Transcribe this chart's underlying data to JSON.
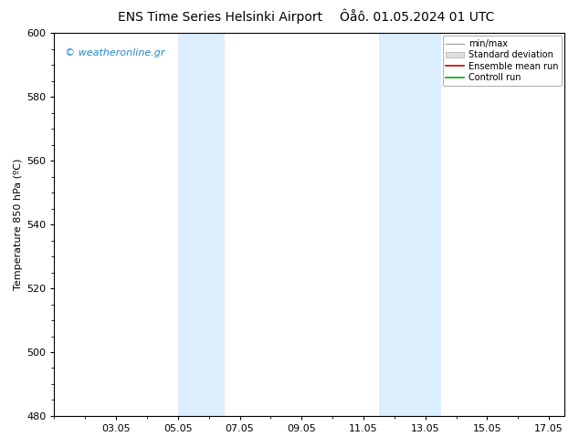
{
  "title": "ENS Time Series Helsinki Airport",
  "title2": "Ôåô. 01.05.2024 01 UTC",
  "ylabel": "Temperature 850 hPa (ºC)",
  "ylim": [
    480,
    600
  ],
  "yticks": [
    480,
    500,
    520,
    540,
    560,
    580,
    600
  ],
  "xlim": [
    0.0,
    16.5
  ],
  "xtick_labels": [
    "03.05",
    "05.05",
    "07.05",
    "09.05",
    "11.05",
    "13.05",
    "15.05",
    "17.05"
  ],
  "xtick_positions": [
    2,
    4,
    6,
    8,
    10,
    12,
    14,
    16
  ],
  "shade_regions": [
    {
      "start": 4.0,
      "end": 5.5
    },
    {
      "start": 10.5,
      "end": 12.5
    }
  ],
  "shade_color": "#ddeeff",
  "watermark": "© weatheronline.gr",
  "watermark_color": "#2288cc",
  "bg_color": "#ffffff",
  "plot_bg_color": "#ffffff",
  "legend_entries": [
    "min/max",
    "Standard deviation",
    "Ensemble mean run",
    "Controll run"
  ],
  "legend_line_colors": [
    "#aaaaaa",
    "#cccccc",
    "#cc0000",
    "#00aa00"
  ],
  "title_fontsize": 10,
  "ylabel_fontsize": 8,
  "tick_fontsize": 8,
  "legend_fontsize": 7,
  "watermark_fontsize": 8
}
